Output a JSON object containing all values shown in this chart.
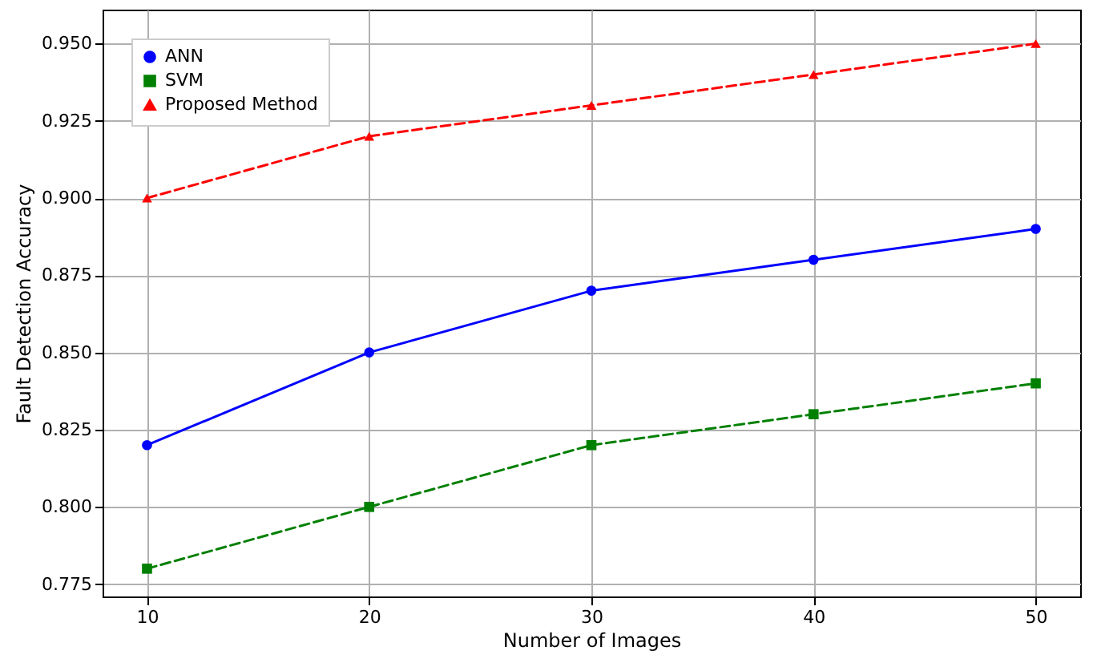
{
  "chart_data": {
    "type": "line",
    "xlabel": "Number of Images",
    "ylabel": "Fault Detection Accuracy",
    "x": [
      10,
      20,
      30,
      40,
      50
    ],
    "series": [
      {
        "name": "ANN",
        "color": "#0000ff",
        "values": [
          0.82,
          0.85,
          0.87,
          0.88,
          0.89
        ],
        "marker": "circle",
        "line_style": "solid"
      },
      {
        "name": "SVM",
        "color": "#008000",
        "values": [
          0.78,
          0.8,
          0.82,
          0.83,
          0.84
        ],
        "marker": "square",
        "line_style": "dashed"
      },
      {
        "name": "Proposed Method",
        "color": "#ff0000",
        "values": [
          0.9,
          0.92,
          0.93,
          0.94,
          0.95
        ],
        "marker": "triangle",
        "line_style": "dashed"
      }
    ],
    "xlim": [
      8,
      52
    ],
    "xticks": [
      10,
      20,
      30,
      40,
      50
    ],
    "ylim": [
      0.771,
      0.961
    ],
    "yticks": [
      {
        "value": 0.775,
        "label": "0.775"
      },
      {
        "value": 0.8,
        "label": "0.800"
      },
      {
        "value": 0.825,
        "label": "0.825"
      },
      {
        "value": 0.85,
        "label": "0.850"
      },
      {
        "value": 0.875,
        "label": "0.875"
      },
      {
        "value": 0.9,
        "label": "0.900"
      },
      {
        "value": 0.925,
        "label": "0.925"
      },
      {
        "value": 0.95,
        "label": "0.950"
      }
    ],
    "grid": true,
    "legend": "top left"
  }
}
